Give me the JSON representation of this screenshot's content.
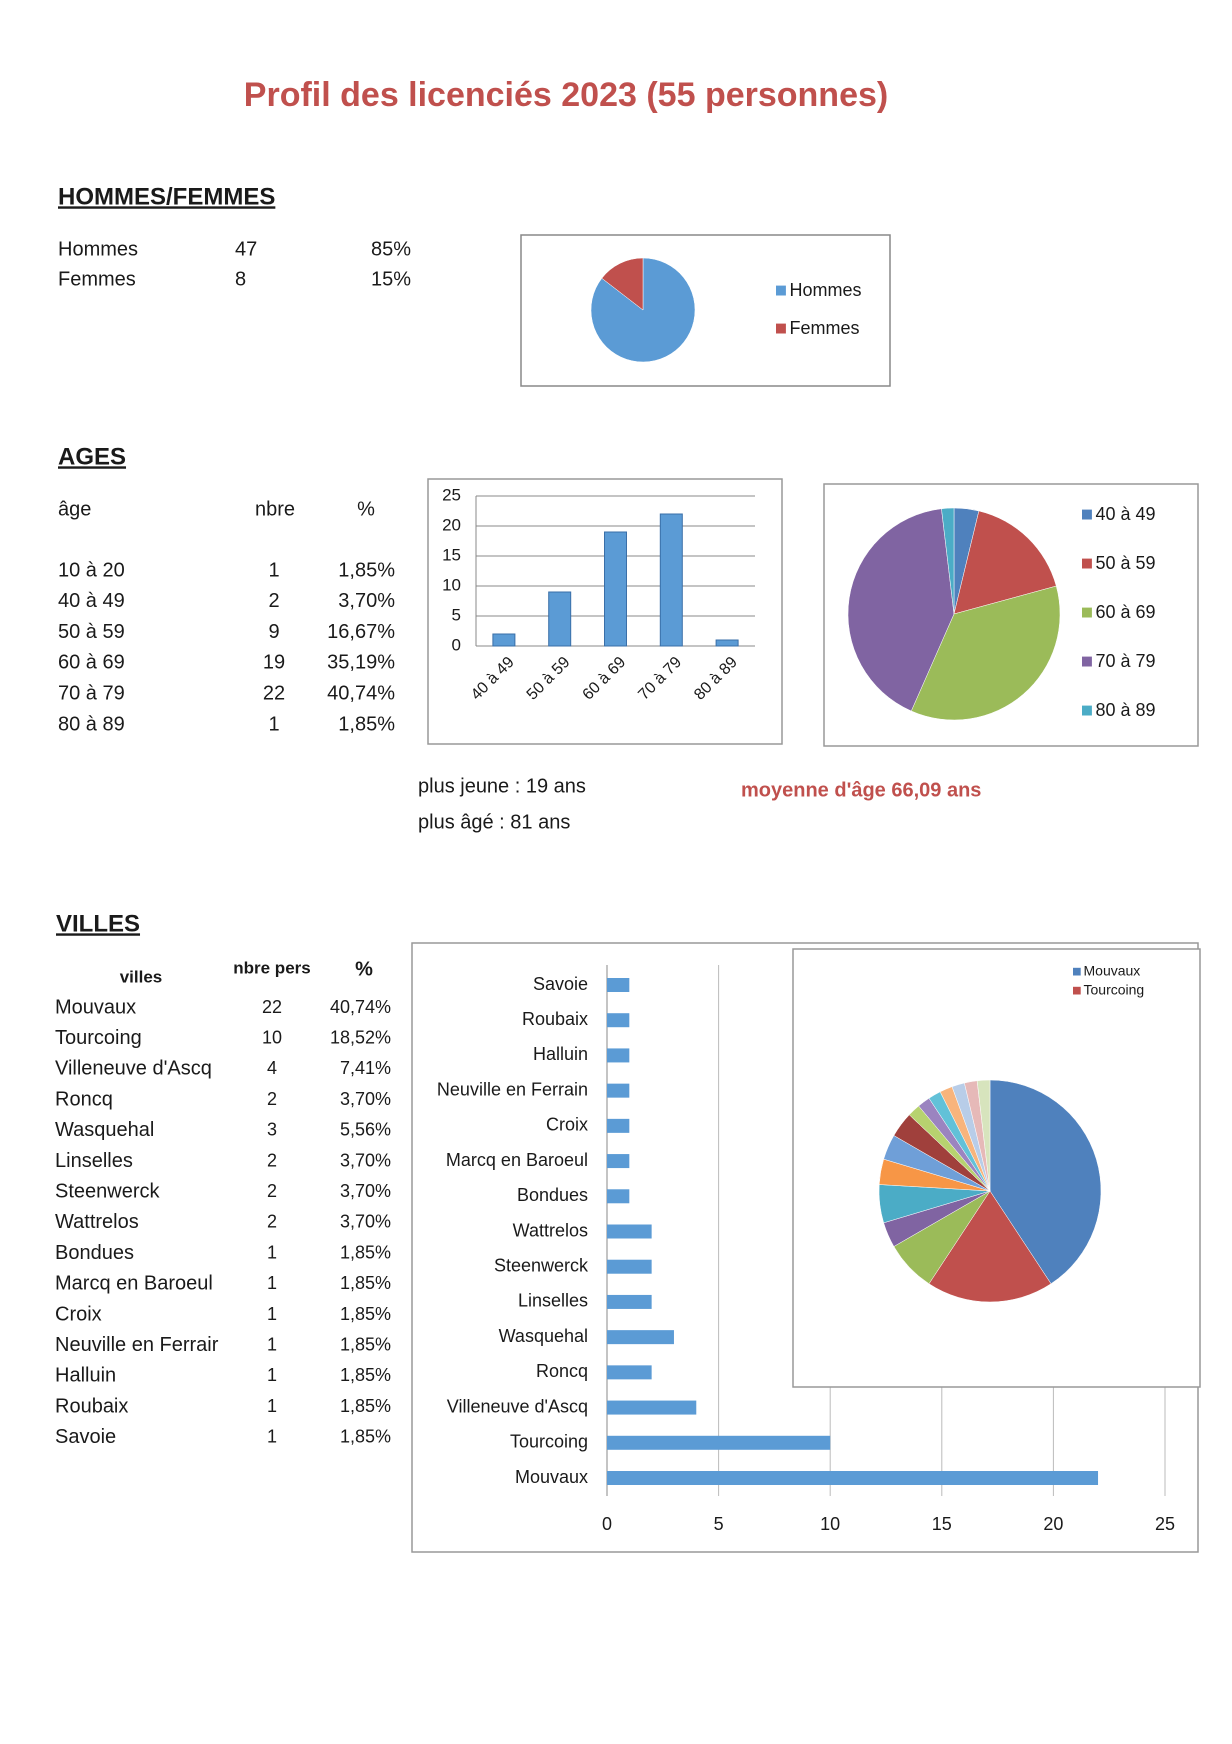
{
  "title": "Profil des licenciés 2023 (55 personnes)",
  "sections": {
    "gender": {
      "heading": "HOMMES/FEMMES",
      "rows": [
        [
          "Hommes",
          "47",
          "85%"
        ],
        [
          "Femmes",
          "8",
          "15%"
        ]
      ]
    },
    "ages": {
      "heading": "AGES",
      "columns": [
        "âge",
        "nbre",
        "%"
      ],
      "rows": [
        [
          "10 à 20",
          "1",
          "1,85%"
        ],
        [
          "40 à 49",
          "2",
          "3,70%"
        ],
        [
          "50 à 59",
          "9",
          "16,67%"
        ],
        [
          "60 à 69",
          "19",
          "35,19%"
        ],
        [
          "70 à 79",
          "22",
          "40,74%"
        ],
        [
          "80 à 89",
          "1",
          "1,85%"
        ]
      ],
      "notes": [
        "plus jeune : 19 ans",
        "plus âgé : 81 ans"
      ],
      "average": "moyenne d'âge 66,09 ans"
    },
    "cities": {
      "heading": "VILLES",
      "columns": [
        "villes",
        "nbre pers",
        "%"
      ],
      "rows": [
        [
          "Mouvaux",
          "22",
          "40,74%"
        ],
        [
          "Tourcoing",
          "10",
          "18,52%"
        ],
        [
          "Villeneuve d'Ascq",
          "4",
          "7,41%"
        ],
        [
          "Roncq",
          "2",
          "3,70%"
        ],
        [
          "Wasquehal",
          "3",
          "5,56%"
        ],
        [
          "Linselles",
          "2",
          "3,70%"
        ],
        [
          "Steenwerck",
          "2",
          "3,70%"
        ],
        [
          "Wattrelos",
          "2",
          "3,70%"
        ],
        [
          "Bondues",
          "1",
          "1,85%"
        ],
        [
          "Marcq en Baroeul",
          "1",
          "1,85%"
        ],
        [
          "Croix",
          "1",
          "1,85%"
        ],
        [
          "Neuville en Ferrair",
          "1",
          "1,85%"
        ],
        [
          "Halluin",
          "1",
          "1,85%"
        ],
        [
          "Roubaix",
          "1",
          "1,85%"
        ],
        [
          "Savoie",
          "1",
          "1,85%"
        ]
      ]
    }
  },
  "chart_data": [
    {
      "type": "pie",
      "categories": [
        "Hommes",
        "Femmes"
      ],
      "values": [
        47,
        8
      ],
      "colors": [
        "#5b9bd5",
        "#c0504d"
      ]
    },
    {
      "type": "bar",
      "categories": [
        "40 à 49",
        "50 à 59",
        "60 à 69",
        "70 à 79",
        "80 à 89"
      ],
      "values": [
        2,
        9,
        19,
        22,
        1
      ],
      "color": "#5b9bd5",
      "ylim": [
        0,
        25
      ],
      "yticks": [
        0,
        5,
        10,
        15,
        20,
        25
      ],
      "grid": true
    },
    {
      "type": "pie",
      "categories": [
        "40 à 49",
        "50 à 59",
        "60 à 69",
        "70 à 79",
        "80 à 89"
      ],
      "values": [
        2,
        9,
        19,
        22,
        1
      ],
      "colors": [
        "#4f81bd",
        "#c0504d",
        "#9bbb59",
        "#8064a2",
        "#4bacc6"
      ]
    },
    {
      "type": "hbar",
      "categories": [
        "Mouvaux",
        "Tourcoing",
        "Villeneuve d'Ascq",
        "Roncq",
        "Wasquehal",
        "Linselles",
        "Steenwerck",
        "Wattrelos",
        "Bondues",
        "Marcq en Baroeul",
        "Croix",
        "Neuville en Ferrain",
        "Halluin",
        "Roubaix",
        "Savoie"
      ],
      "values": [
        22,
        10,
        4,
        2,
        3,
        2,
        2,
        2,
        1,
        1,
        1,
        1,
        1,
        1,
        1
      ],
      "color": "#5b9bd5",
      "xlim": [
        0,
        25
      ],
      "xticks": [
        0,
        5,
        10,
        15,
        20,
        25
      ],
      "grid": true
    },
    {
      "type": "pie",
      "legend": [
        "Mouvaux",
        "Tourcoing"
      ],
      "values": [
        22,
        10,
        4,
        2,
        3,
        2,
        2,
        2,
        1,
        1,
        1,
        1,
        1,
        1,
        1
      ],
      "colors": [
        "#4f81bd",
        "#c0504d",
        "#9bbb59",
        "#8064a2",
        "#4bacc6",
        "#f79646",
        "#6f9fd8",
        "#a0403c",
        "#b7d26f",
        "#9b84c0",
        "#62c1d8",
        "#f8b47c",
        "#b8cde8",
        "#e6b9b8",
        "#d7e4bd"
      ]
    }
  ]
}
